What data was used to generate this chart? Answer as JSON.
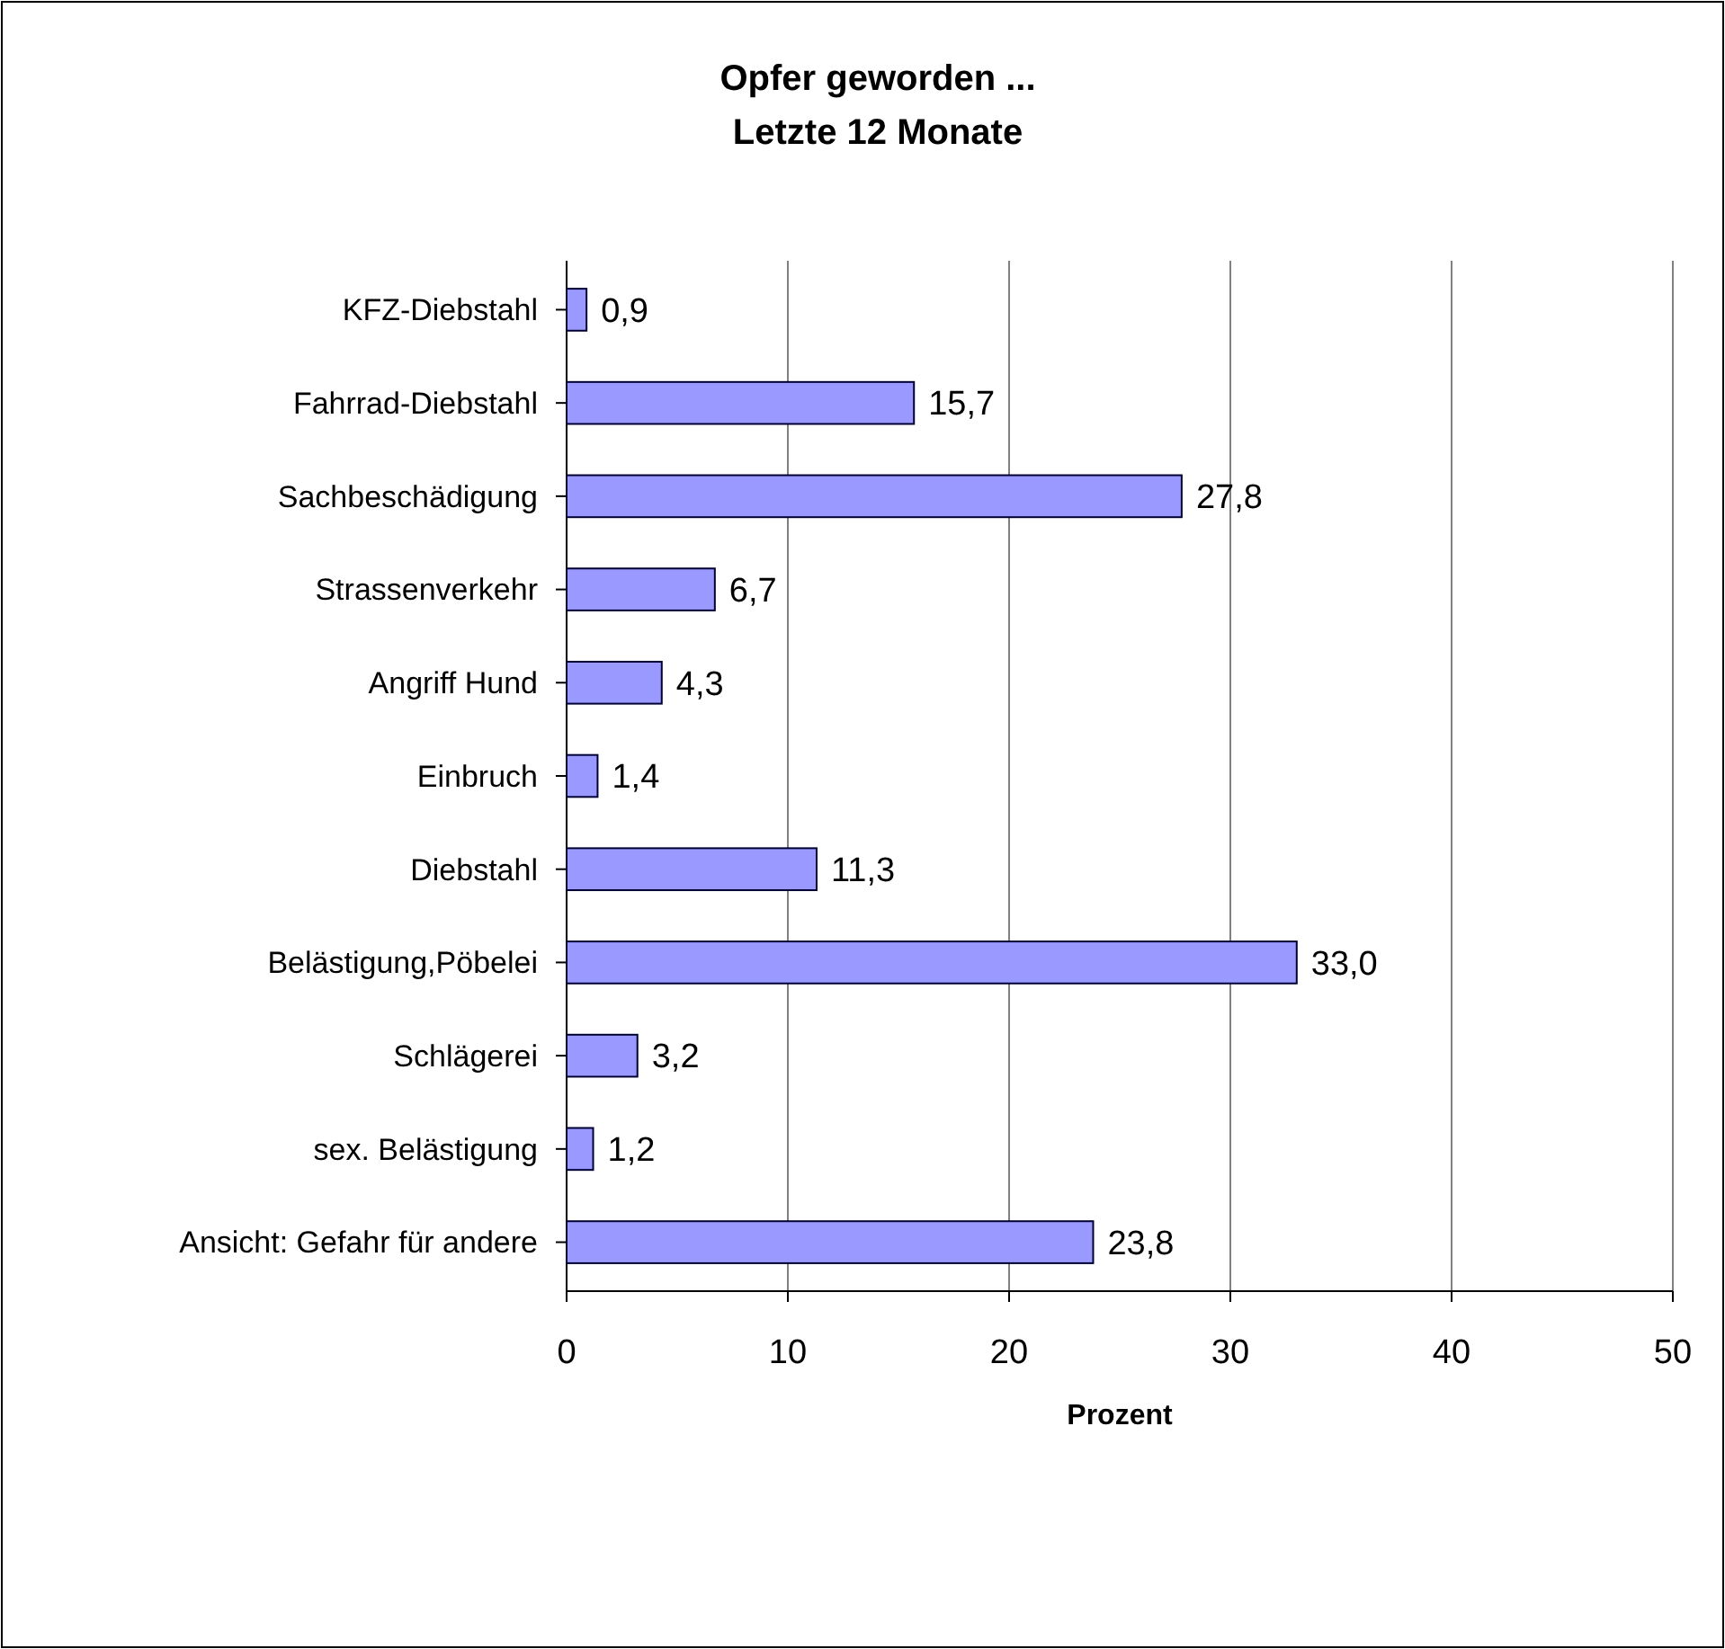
{
  "chart_data": {
    "type": "bar",
    "orientation": "horizontal",
    "title": "Opfer geworden ...\nLetzte 12 Monate",
    "xlabel": "Prozent",
    "categories": [
      "KFZ-Diebstahl",
      "Fahrrad-Diebstahl",
      "Sachbeschädigung",
      "Strassenverkehr",
      "Angriff Hund",
      "Einbruch",
      "Diebstahl",
      "Belästigung,Pöbelei",
      "Schlägerei",
      "sex. Belästigung",
      "Ansicht: Gefahr für andere"
    ],
    "values": [
      0.9,
      15.7,
      27.8,
      6.7,
      4.3,
      1.4,
      11.3,
      33.0,
      3.2,
      1.2,
      23.8
    ],
    "value_labels": [
      "0,9",
      "15,7",
      "27,8",
      "6,7",
      "4,3",
      "1,4",
      "11,3",
      "33,0",
      "3,2",
      "1,2",
      "23,8"
    ],
    "color": "#9999ff",
    "xlim": [
      0,
      50
    ],
    "xticks": [
      0,
      10,
      20,
      30,
      40,
      50
    ],
    "grid": "x"
  }
}
